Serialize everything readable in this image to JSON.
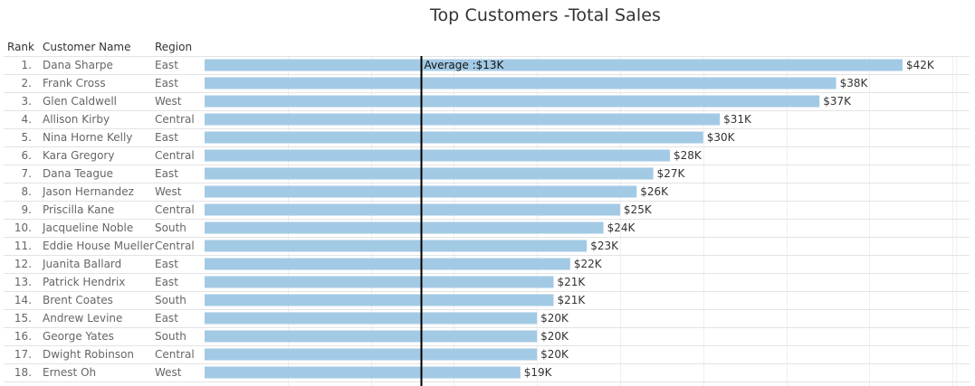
{
  "chart": {
    "title": "Top Customers -Total Sales"
  },
  "headers": {
    "rank": "Rank",
    "customer": "Customer Name",
    "region": "Region"
  },
  "colors": {
    "bar": "#a3cae5",
    "average_line": "#000000",
    "row_divider": "#e3e3e3",
    "gridline": "#efefef"
  },
  "chart_data": {
    "type": "bar",
    "orientation": "horizontal",
    "title": "Top Customers -Total Sales",
    "xlim": [
      0,
      45000
    ],
    "grid": true,
    "average": {
      "value": 13000,
      "label": "Average :$13K"
    },
    "rows": [
      {
        "rank": "1.",
        "customer": "Dana Sharpe",
        "region": "East",
        "value": 42000,
        "label": "$42K"
      },
      {
        "rank": "2.",
        "customer": "Frank Cross",
        "region": "East",
        "value": 38000,
        "label": "$38K"
      },
      {
        "rank": "3.",
        "customer": "Glen Caldwell",
        "region": "West",
        "value": 37000,
        "label": "$37K"
      },
      {
        "rank": "4.",
        "customer": "Allison Kirby",
        "region": "Central",
        "value": 31000,
        "label": "$31K"
      },
      {
        "rank": "5.",
        "customer": "Nina Horne Kelly",
        "region": "East",
        "value": 30000,
        "label": "$30K"
      },
      {
        "rank": "6.",
        "customer": "Kara Gregory",
        "region": "Central",
        "value": 28000,
        "label": "$28K"
      },
      {
        "rank": "7.",
        "customer": "Dana Teague",
        "region": "East",
        "value": 27000,
        "label": "$27K"
      },
      {
        "rank": "8.",
        "customer": "Jason Hernandez",
        "region": "West",
        "value": 26000,
        "label": "$26K"
      },
      {
        "rank": "9.",
        "customer": "Priscilla Kane",
        "region": "Central",
        "value": 25000,
        "label": "$25K"
      },
      {
        "rank": "10.",
        "customer": "Jacqueline Noble",
        "region": "South",
        "value": 24000,
        "label": "$24K"
      },
      {
        "rank": "11.",
        "customer": "Eddie House Mueller",
        "region": "Central",
        "value": 23000,
        "label": "$23K"
      },
      {
        "rank": "12.",
        "customer": "Juanita Ballard",
        "region": "East",
        "value": 22000,
        "label": "$22K"
      },
      {
        "rank": "13.",
        "customer": "Patrick Hendrix",
        "region": "East",
        "value": 21000,
        "label": "$21K"
      },
      {
        "rank": "14.",
        "customer": "Brent Coates",
        "region": "South",
        "value": 21000,
        "label": "$21K"
      },
      {
        "rank": "15.",
        "customer": "Andrew Levine",
        "region": "East",
        "value": 20000,
        "label": "$20K"
      },
      {
        "rank": "16.",
        "customer": "George Yates",
        "region": "South",
        "value": 20000,
        "label": "$20K"
      },
      {
        "rank": "17.",
        "customer": "Dwight Robinson",
        "region": "Central",
        "value": 20000,
        "label": "$20K"
      },
      {
        "rank": "18.",
        "customer": "Ernest Oh",
        "region": "West",
        "value": 19000,
        "label": "$19K"
      }
    ]
  }
}
